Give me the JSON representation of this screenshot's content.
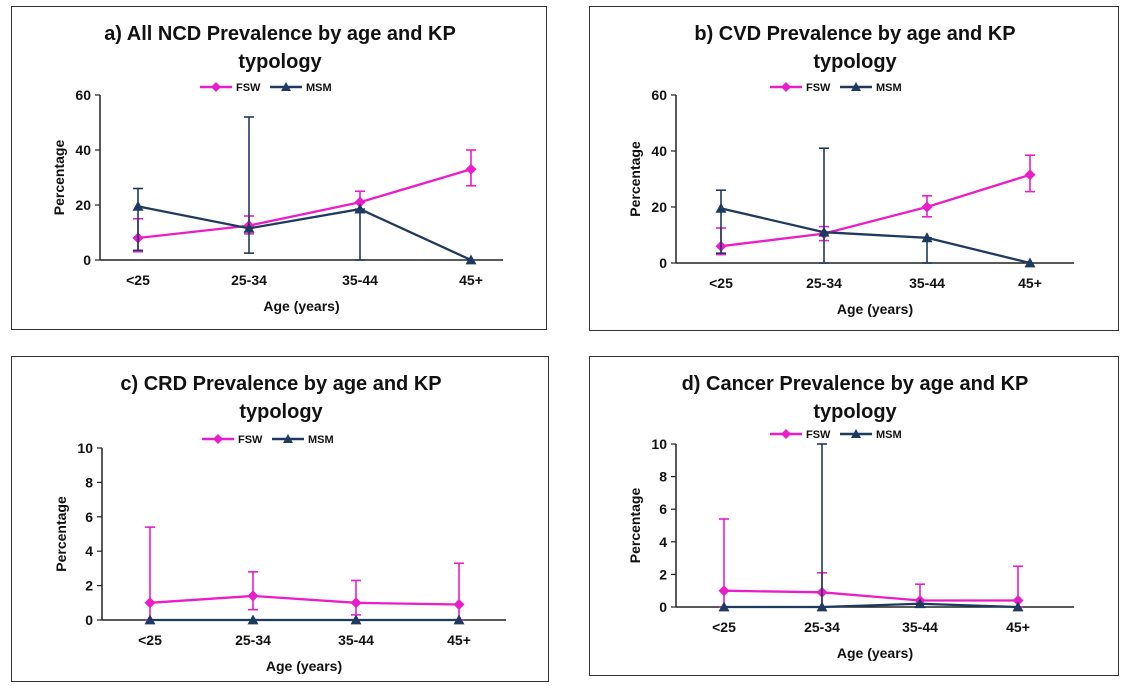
{
  "colors": {
    "FSW": "#e91ec8",
    "MSM": "#1f3a5f",
    "axis": "#222222"
  },
  "chart_data": [
    {
      "type": "line",
      "title": "a) All NCD Prevalence by age and KP typology",
      "title_lines": [
        "a) All NCD Prevalence by age and KP",
        "typology"
      ],
      "xlabel": "Age (years)",
      "ylabel": "Percentage",
      "ylim": [
        0,
        60
      ],
      "yticks": [
        0,
        20,
        40,
        60
      ],
      "categories": [
        "<25",
        "25-34",
        "35-44",
        "45+"
      ],
      "legend": "top-center",
      "series": [
        {
          "name": "FSW",
          "marker": "diamond",
          "values": [
            8,
            12.5,
            21,
            33
          ],
          "err_low": [
            3,
            9.5,
            17.5,
            27
          ],
          "err_high": [
            15,
            16,
            25,
            40
          ]
        },
        {
          "name": "MSM",
          "marker": "triangle",
          "values": [
            19.5,
            11.5,
            18.5,
            0
          ],
          "err_low": [
            3.5,
            2.5,
            0,
            0
          ],
          "err_high": [
            26,
            52,
            18.5,
            0
          ]
        }
      ]
    },
    {
      "type": "line",
      "title": "b) CVD Prevalence by age and KP typology",
      "title_lines": [
        "b) CVD Prevalence by age and KP",
        "typology"
      ],
      "xlabel": "Age (years)",
      "ylabel": "Percentage",
      "ylim": [
        0,
        60
      ],
      "yticks": [
        0,
        20,
        40,
        60
      ],
      "categories": [
        "<25",
        "25-34",
        "35-44",
        "45+"
      ],
      "legend": "top-center",
      "series": [
        {
          "name": "FSW",
          "marker": "diamond",
          "values": [
            6,
            10.5,
            20,
            31.5
          ],
          "err_low": [
            3,
            8,
            16.5,
            25.5
          ],
          "err_high": [
            12.5,
            13,
            24,
            38.5
          ]
        },
        {
          "name": "MSM",
          "marker": "triangle",
          "values": [
            19.5,
            11,
            9,
            0
          ],
          "err_low": [
            3.5,
            0,
            0,
            0
          ],
          "err_high": [
            26,
            41,
            9,
            0
          ]
        }
      ]
    },
    {
      "type": "line",
      "title": "c) CRD Prevalence by age and KP typology",
      "title_lines": [
        "c) CRD Prevalence by age and KP",
        "typology"
      ],
      "xlabel": "Age (years)",
      "ylabel": "Percentage",
      "ylim": [
        0,
        10
      ],
      "yticks": [
        0,
        2,
        4,
        6,
        8,
        10
      ],
      "categories": [
        "<25",
        "25-34",
        "35-44",
        "45+"
      ],
      "legend": "top-center",
      "series": [
        {
          "name": "FSW",
          "marker": "diamond",
          "values": [
            1,
            1.4,
            1,
            0.9
          ],
          "err_low": [
            0,
            0.6,
            0.3,
            0
          ],
          "err_high": [
            5.4,
            2.8,
            2.3,
            3.3
          ]
        },
        {
          "name": "MSM",
          "marker": "triangle",
          "values": [
            0,
            0,
            0,
            0
          ],
          "err_low": [
            0,
            0,
            0,
            0
          ],
          "err_high": [
            0,
            0,
            0,
            0
          ]
        }
      ]
    },
    {
      "type": "line",
      "title": "d) Cancer Prevalence by age and KP typology",
      "title_lines": [
        "d) Cancer Prevalence by age and KP",
        "typology"
      ],
      "xlabel": "Age (years)",
      "ylabel": "Percentage",
      "ylim": [
        0,
        10
      ],
      "yticks": [
        0,
        2,
        4,
        6,
        8,
        10
      ],
      "categories": [
        "<25",
        "25-34",
        "35-44",
        "45+"
      ],
      "legend": "top-center",
      "series": [
        {
          "name": "FSW",
          "marker": "diamond",
          "values": [
            1,
            0.9,
            0.4,
            0.4
          ],
          "err_low": [
            0,
            0,
            0,
            0
          ],
          "err_high": [
            5.4,
            2.1,
            1.4,
            2.5
          ]
        },
        {
          "name": "MSM",
          "marker": "triangle",
          "values": [
            0,
            0,
            0.2,
            0
          ],
          "err_low": [
            0,
            0,
            0,
            0
          ],
          "err_high": [
            0,
            10,
            0.2,
            0
          ]
        }
      ]
    }
  ]
}
